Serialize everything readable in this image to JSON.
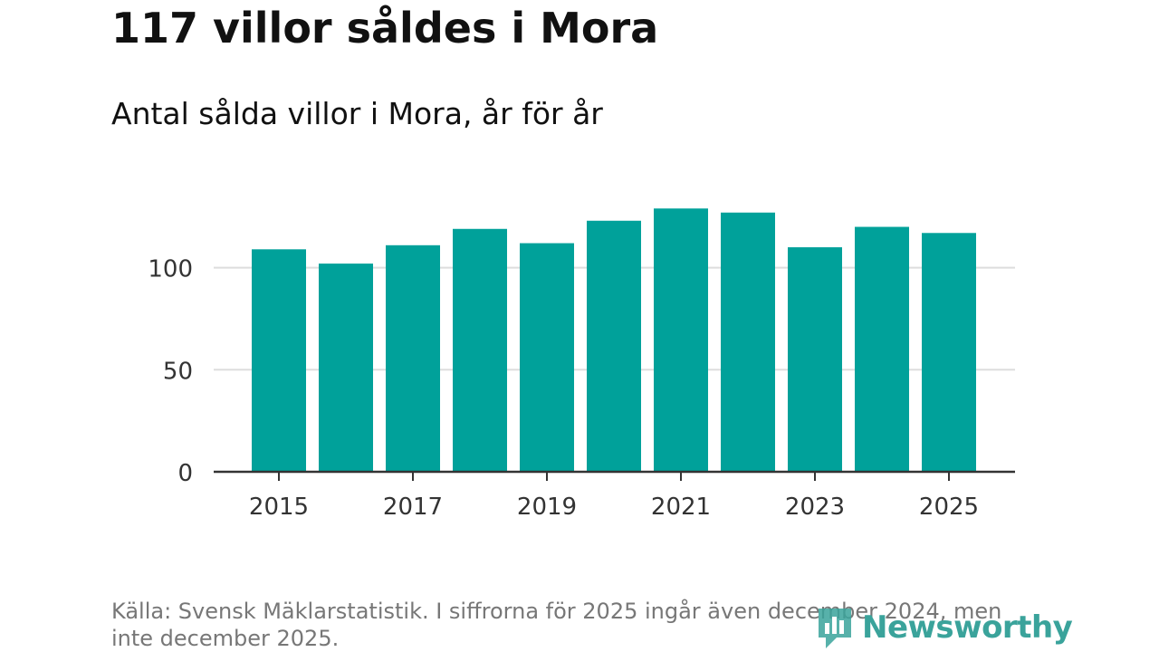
{
  "header": {
    "title": "117 villor såldes i Mora",
    "subtitle": "Antal sålda villor i Mora, år för år"
  },
  "footer": {
    "source": "Källa: Svensk Mäklarstatistik. I siffrorna för 2025 ingår även december 2024, men inte december 2025.",
    "brand": "Newsworthy"
  },
  "colors": {
    "bar": "#00a19a",
    "grid": "#dddddd",
    "axis": "#333333",
    "brand": "#3aa39b"
  },
  "chart_data": {
    "type": "bar",
    "title": "117 villor såldes i Mora",
    "subtitle": "Antal sålda villor i Mora, år för år",
    "xlabel": "",
    "ylabel": "",
    "categories": [
      "2015",
      "2016",
      "2017",
      "2018",
      "2019",
      "2020",
      "2021",
      "2022",
      "2023",
      "2024",
      "2025"
    ],
    "values": [
      109,
      102,
      111,
      119,
      112,
      123,
      129,
      127,
      110,
      120,
      117
    ],
    "ylim": [
      0,
      135
    ],
    "yticks": [
      "0",
      "50",
      "100"
    ],
    "xticks": [
      "2015",
      "2017",
      "2019",
      "2021",
      "2023",
      "2025"
    ],
    "grid": true
  }
}
